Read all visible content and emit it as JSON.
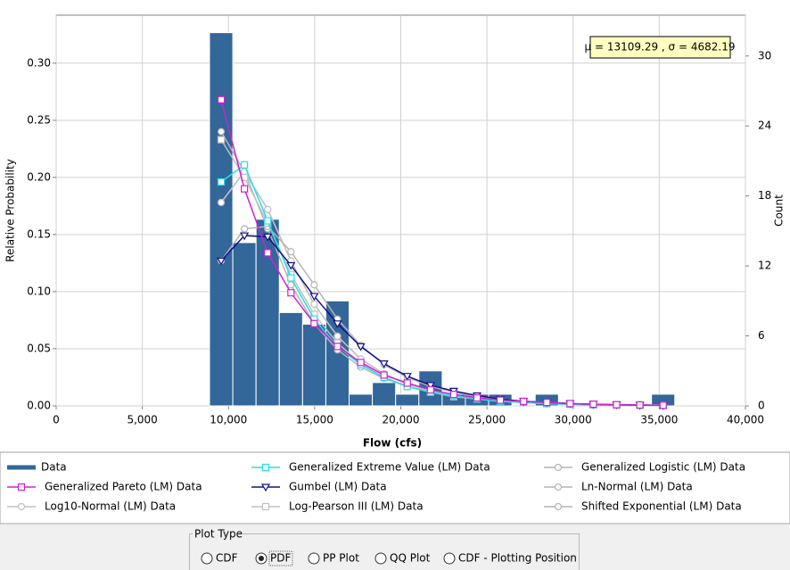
{
  "chart_data": {
    "type": "histogram",
    "xlabel": "Flow (cfs)",
    "ylabel": "Relative Probability",
    "y2label": "Count",
    "annotation": "μ = 13109.29 , σ = 4682.19",
    "xlim": [
      0,
      40000
    ],
    "xticks": [
      0,
      {
        "value": 5000,
        "label": "5,000"
      },
      {
        "value": 10000,
        "label": "10,000"
      },
      {
        "value": 15000,
        "label": "15,000"
      },
      {
        "value": 20000,
        "label": "20,000"
      },
      {
        "value": 25000,
        "label": "25,000"
      },
      {
        "value": 30000,
        "label": "30,000"
      },
      {
        "value": 35000,
        "label": "35,000"
      },
      {
        "value": 40000,
        "label": "40,000"
      }
    ],
    "ylim": [
      0,
      0.342
    ],
    "yticks": [
      {
        "value": 0,
        "label": "0.00"
      },
      {
        "value": 0.05,
        "label": "0.05"
      },
      {
        "value": 0.1,
        "label": "0.10"
      },
      {
        "value": 0.15,
        "label": "0.15"
      },
      {
        "value": 0.2,
        "label": "0.20"
      },
      {
        "value": 0.25,
        "label": "0.25"
      },
      {
        "value": 0.3,
        "label": "0.30"
      }
    ],
    "y2lim": [
      0,
      33.5
    ],
    "y2ticks": [
      0,
      6,
      12,
      18,
      24,
      30
    ],
    "grid": true,
    "histogram": {
      "name": "Data",
      "color": "#336699",
      "axis": "y2",
      "bins": [
        8900,
        10250,
        11600,
        12950,
        14300,
        15650,
        17000,
        18350,
        19700,
        21050,
        22400,
        23750,
        25100,
        26450,
        27800,
        29150,
        30500,
        31850,
        33200,
        34550,
        35900
      ],
      "counts": [
        32,
        14,
        16,
        8,
        7,
        9,
        1,
        2,
        1,
        3,
        1,
        1,
        1,
        0,
        1,
        0,
        0,
        0,
        0,
        1
      ]
    },
    "x": [
      9575,
      10925,
      12275,
      13625,
      14975,
      16325,
      17675,
      19025,
      20375,
      21725,
      23075,
      24425,
      25775,
      27125,
      28475,
      29825,
      31175,
      32525,
      33875,
      35225
    ],
    "series": [
      {
        "name": "Generalized Extreme Value (LM) Data",
        "color": "#22e0e8",
        "marker": "square",
        "values": [
          0.196,
          0.211,
          0.162,
          0.112,
          0.076,
          0.052,
          0.036,
          0.025,
          0.017,
          0.012,
          0.009,
          0.006,
          0.004,
          0.003,
          0.002,
          0.0015,
          0.001,
          0.0008,
          0.0006,
          0.0004
        ]
      },
      {
        "name": "Generalized Logistic (LM) Data",
        "color": "#b4b4b4",
        "marker": "circle",
        "values": [
          0.24,
          0.205,
          0.155,
          0.106,
          0.072,
          0.049,
          0.034,
          0.024,
          0.017,
          0.012,
          0.009,
          0.006,
          0.005,
          0.004,
          0.003,
          0.002,
          0.0015,
          0.001,
          0.001,
          0.0008
        ]
      },
      {
        "name": "Generalized Pareto (LM) Data",
        "color": "#d020d0",
        "marker": "square",
        "values": [
          0.268,
          0.19,
          0.134,
          0.099,
          0.072,
          0.052,
          0.038,
          0.027,
          0.02,
          0.014,
          0.01,
          0.007,
          0.005,
          0.004,
          0.003,
          0.002,
          0.0015,
          0.001,
          0.0008,
          0.0005
        ]
      },
      {
        "name": "Gumbel (LM) Data",
        "color": "#10108c",
        "marker": "triangle",
        "values": [
          0.127,
          0.149,
          0.148,
          0.123,
          0.096,
          0.072,
          0.052,
          0.037,
          0.026,
          0.018,
          0.013,
          0.009,
          0.006,
          0.004,
          0.003,
          0.002,
          0.0014,
          0.001,
          0.0007,
          0.0005
        ]
      },
      {
        "name": "Ln-Normal (LM) Data",
        "color": "#b4b4b4",
        "marker": "circle",
        "values": [
          0.178,
          0.205,
          0.172,
          0.127,
          0.089,
          0.061,
          0.041,
          0.028,
          0.019,
          0.013,
          0.009,
          0.006,
          0.004,
          0.003,
          0.002,
          0.0015,
          0.001,
          0.0007,
          0.0005,
          0.0004
        ]
      },
      {
        "name": "Log10-Normal (LM) Data",
        "color": "#c0c0c0",
        "marker": "circle",
        "values": [
          0.178,
          0.205,
          0.172,
          0.127,
          0.089,
          0.061,
          0.041,
          0.028,
          0.019,
          0.013,
          0.009,
          0.006,
          0.004,
          0.003,
          0.002,
          0.0015,
          0.001,
          0.0007,
          0.0005,
          0.0004
        ]
      },
      {
        "name": "Log-Pearson III (LM) Data",
        "color": "#c0c0c0",
        "marker": "square",
        "values": [
          0.233,
          0.2,
          0.16,
          0.115,
          0.08,
          0.055,
          0.037,
          0.025,
          0.017,
          0.012,
          0.008,
          0.006,
          0.004,
          0.003,
          0.002,
          0.0014,
          0.001,
          0.0007,
          0.0005,
          0.0003
        ]
      },
      {
        "name": "Shifted Exponential (LM) Data",
        "color": "#b4b4b4",
        "marker": "circle",
        "values": [
          0.127,
          0.155,
          0.157,
          0.135,
          0.106,
          0.076,
          0.053,
          0.036,
          0.025,
          0.017,
          0.012,
          0.008,
          0.006,
          0.004,
          0.003,
          0.002,
          0.0014,
          0.001,
          0.0007,
          0.0005
        ]
      }
    ],
    "plot_type": {
      "title": "Plot Type",
      "options": [
        "CDF",
        "PDF",
        "PP Plot",
        "QQ Plot",
        "CDF - Plotting Position"
      ],
      "selected": 1
    }
  }
}
